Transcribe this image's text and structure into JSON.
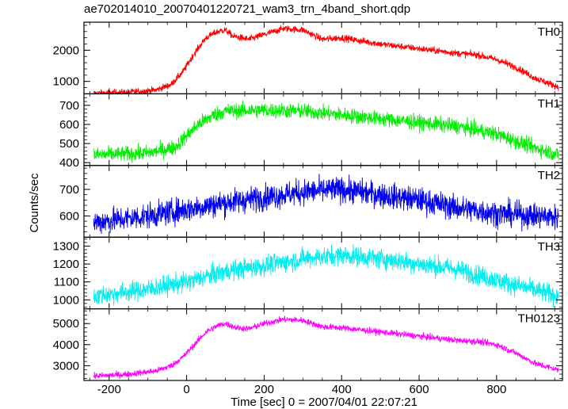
{
  "chart_data": {
    "type": "line",
    "title": "ae702014010_20070401220721_wam3_trn_4band_short.qdp",
    "xlabel": "Time [sec] 0 = 2007/04/01 22:07:21",
    "ylabel": "Counts/sec",
    "xlim": [
      -265,
      970
    ],
    "xticks": [
      -200,
      0,
      200,
      400,
      600,
      800
    ],
    "x_range": [
      -240,
      960
    ],
    "grid": false,
    "panels": [
      {
        "name": "TH0",
        "color": "#ff0000",
        "ylim": [
          600,
          2900
        ],
        "yticks": [
          1000,
          2000
        ],
        "noise": 55,
        "anchors": [
          [
            -240,
            620
          ],
          [
            -150,
            650
          ],
          [
            -80,
            720
          ],
          [
            -40,
            900
          ],
          [
            -10,
            1300
          ],
          [
            20,
            1900
          ],
          [
            50,
            2400
          ],
          [
            80,
            2600
          ],
          [
            100,
            2650
          ],
          [
            120,
            2450
          ],
          [
            160,
            2350
          ],
          [
            200,
            2500
          ],
          [
            250,
            2700
          ],
          [
            300,
            2650
          ],
          [
            350,
            2350
          ],
          [
            400,
            2400
          ],
          [
            450,
            2300
          ],
          [
            500,
            2200
          ],
          [
            600,
            2050
          ],
          [
            700,
            1900
          ],
          [
            750,
            1850
          ],
          [
            800,
            1700
          ],
          [
            850,
            1450
          ],
          [
            900,
            1100
          ],
          [
            960,
            820
          ]
        ]
      },
      {
        "name": "TH1",
        "color": "#00ee00",
        "ylim": [
          385,
          760
        ],
        "yticks": [
          400,
          500,
          600,
          700
        ],
        "noise": 20,
        "anchors": [
          [
            -240,
            440
          ],
          [
            -100,
            450
          ],
          [
            -30,
            480
          ],
          [
            0,
            540
          ],
          [
            30,
            600
          ],
          [
            70,
            650
          ],
          [
            100,
            670
          ],
          [
            200,
            675
          ],
          [
            300,
            670
          ],
          [
            400,
            650
          ],
          [
            500,
            630
          ],
          [
            600,
            610
          ],
          [
            700,
            590
          ],
          [
            800,
            550
          ],
          [
            880,
            490
          ],
          [
            960,
            440
          ]
        ]
      },
      {
        "name": "TH2",
        "color": "#0000ee",
        "ylim": [
          520,
          790
        ],
        "yticks": [
          600,
          700
        ],
        "noise": 24,
        "anchors": [
          [
            -240,
            575
          ],
          [
            -100,
            600
          ],
          [
            0,
            625
          ],
          [
            100,
            650
          ],
          [
            200,
            670
          ],
          [
            300,
            690
          ],
          [
            400,
            700
          ],
          [
            500,
            680
          ],
          [
            600,
            660
          ],
          [
            700,
            630
          ],
          [
            800,
            610
          ],
          [
            960,
            595
          ]
        ]
      },
      {
        "name": "TH3",
        "color": "#00eeee",
        "ylim": [
          950,
          1350
        ],
        "yticks": [
          1000,
          1100,
          1200,
          1300
        ],
        "noise": 28,
        "anchors": [
          [
            -240,
            1020
          ],
          [
            -100,
            1060
          ],
          [
            0,
            1100
          ],
          [
            100,
            1160
          ],
          [
            200,
            1190
          ],
          [
            300,
            1230
          ],
          [
            400,
            1250
          ],
          [
            500,
            1230
          ],
          [
            600,
            1200
          ],
          [
            700,
            1170
          ],
          [
            800,
            1110
          ],
          [
            960,
            1020
          ]
        ]
      },
      {
        "name": "TH0123",
        "color": "#ff00ff",
        "ylim": [
          2300,
          5700
        ],
        "yticks": [
          3000,
          4000,
          5000
        ],
        "noise": 75,
        "anchors": [
          [
            -240,
            2500
          ],
          [
            -150,
            2600
          ],
          [
            -80,
            2750
          ],
          [
            -40,
            3000
          ],
          [
            -10,
            3400
          ],
          [
            20,
            4000
          ],
          [
            50,
            4600
          ],
          [
            80,
            4900
          ],
          [
            100,
            5000
          ],
          [
            130,
            4800
          ],
          [
            160,
            4750
          ],
          [
            200,
            5000
          ],
          [
            250,
            5200
          ],
          [
            300,
            5150
          ],
          [
            350,
            4850
          ],
          [
            400,
            4800
          ],
          [
            450,
            4700
          ],
          [
            500,
            4600
          ],
          [
            600,
            4400
          ],
          [
            700,
            4200
          ],
          [
            750,
            4150
          ],
          [
            800,
            4000
          ],
          [
            850,
            3600
          ],
          [
            900,
            3100
          ],
          [
            960,
            2800
          ]
        ]
      }
    ]
  }
}
